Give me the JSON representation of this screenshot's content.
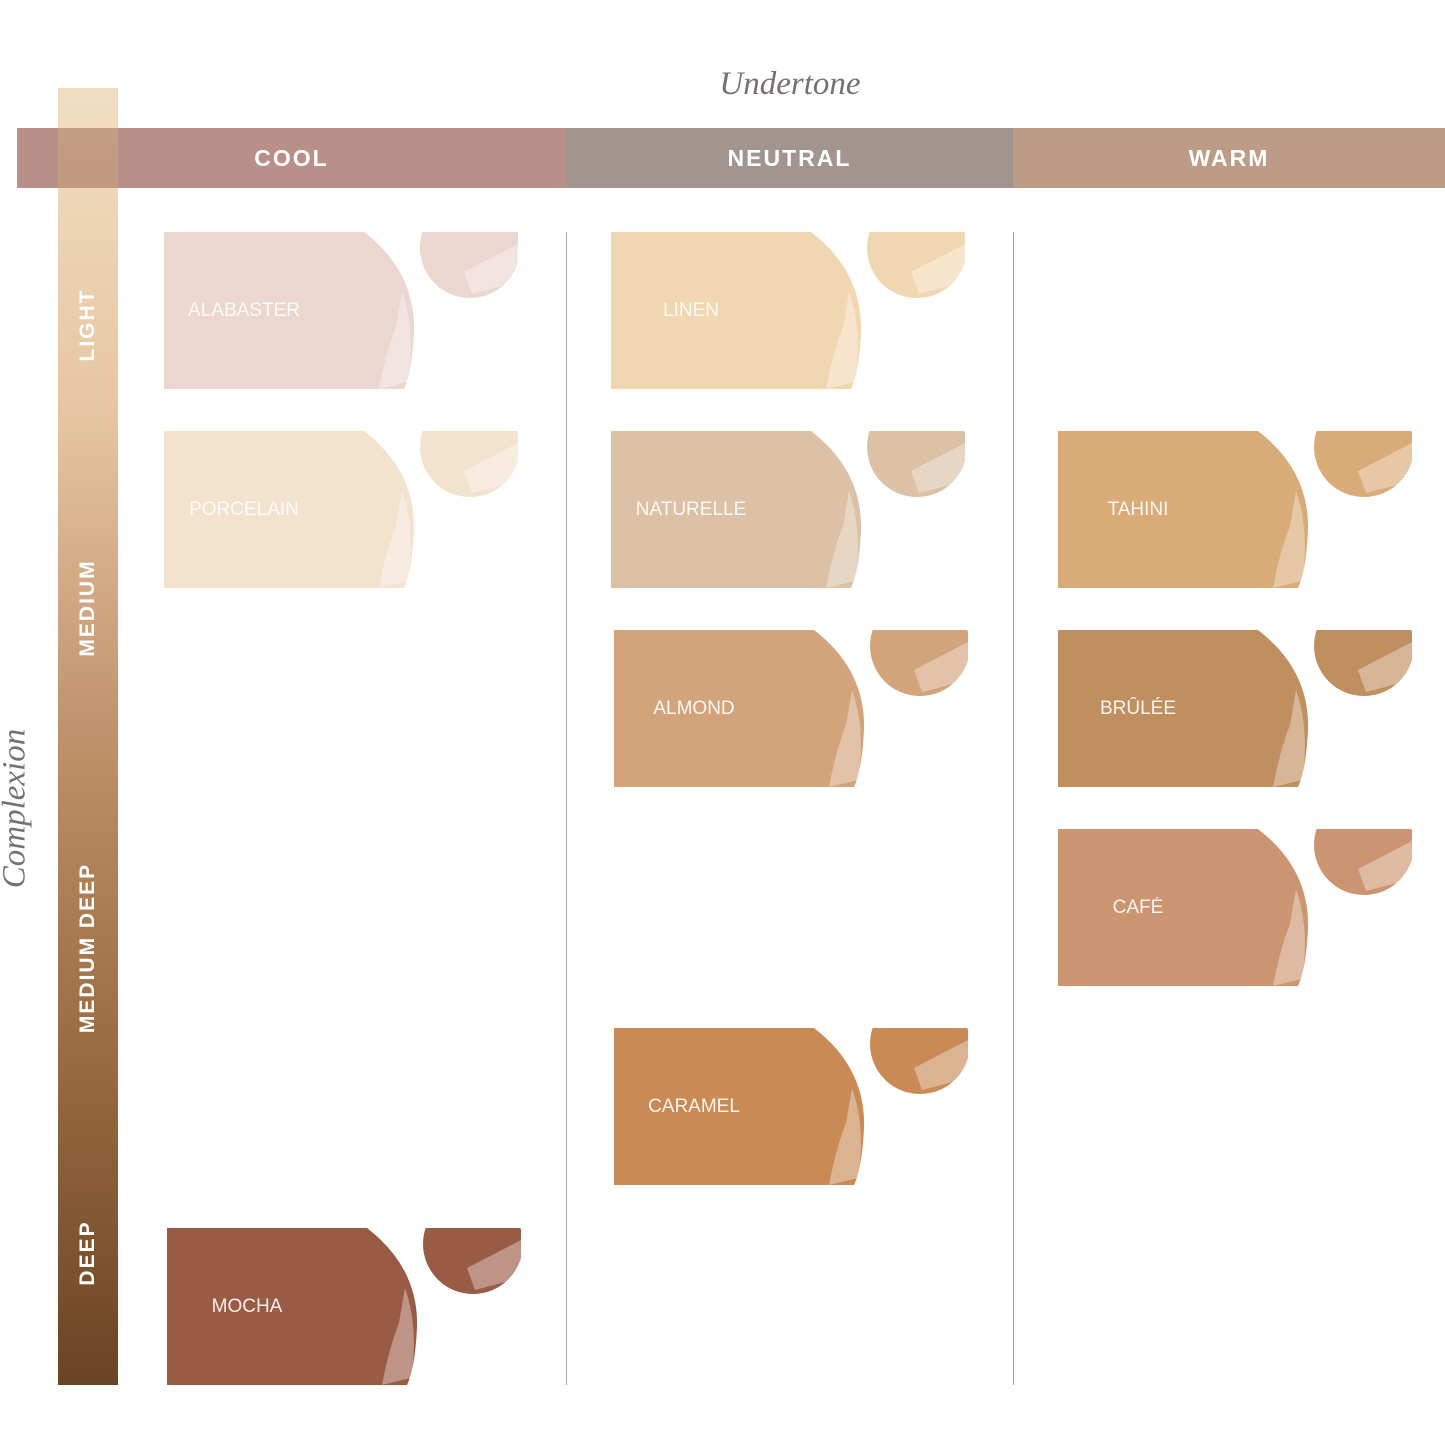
{
  "axes": {
    "undertone_title": "Undertone",
    "complexion_title": "Complexion"
  },
  "undertones": [
    {
      "label": "COOL",
      "color": "#b98f8a"
    },
    {
      "label": "NEUTRAL",
      "color": "#a29590"
    },
    {
      "label": "WARM",
      "color": "#bc9c86"
    }
  ],
  "complexions": [
    "LIGHT",
    "MEDIUM",
    "MEDIUM DEEP",
    "DEEP"
  ],
  "shades": [
    {
      "name": "ALABASTER",
      "undertone": "COOL",
      "color": "#ecd6d0"
    },
    {
      "name": "PORCELAIN",
      "undertone": "COOL",
      "color": "#f3e2ce"
    },
    {
      "name": "MOCHA",
      "undertone": "COOL",
      "color": "#9a5b45"
    },
    {
      "name": "LINEN",
      "undertone": "NEUTRAL",
      "color": "#f1d6b2"
    },
    {
      "name": "NATURELLE",
      "undertone": "NEUTRAL",
      "color": "#dcc1a6"
    },
    {
      "name": "ALMOND",
      "undertone": "NEUTRAL",
      "color": "#d3a47b"
    },
    {
      "name": "CARAMEL",
      "undertone": "NEUTRAL",
      "color": "#c98a56"
    },
    {
      "name": "TAHINI",
      "undertone": "WARM",
      "color": "#d9ab79"
    },
    {
      "name": "BRÛLÉE",
      "undertone": "WARM",
      "color": "#c08f60"
    },
    {
      "name": "CAFÉ",
      "undertone": "WARM",
      "color": "#cc9571"
    }
  ]
}
